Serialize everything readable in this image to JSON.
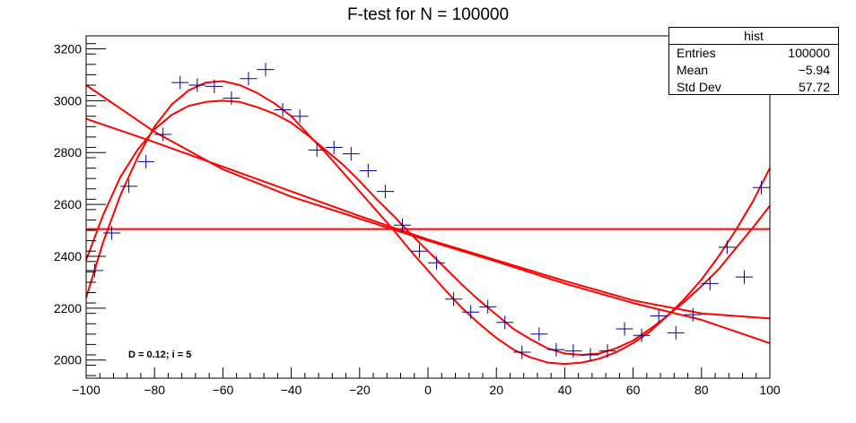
{
  "title": "F-test for N = 100000",
  "stats": {
    "title": "hist",
    "rows": [
      {
        "label": "Entries",
        "value": "100000"
      },
      {
        "label": "Mean",
        "value": "−5.94"
      },
      {
        "label": "Std Dev",
        "value": "57.72"
      }
    ]
  },
  "annotation": "D = 0.12; i = 5",
  "colors": {
    "data": "#000080",
    "fit": "#ff0000"
  },
  "chart_data": {
    "type": "scatter",
    "title": "F-test for N = 100000",
    "xlabel": "",
    "ylabel": "",
    "xlim": [
      -100,
      100
    ],
    "ylim": [
      1930,
      3250
    ],
    "x_ticks": [
      -100,
      -80,
      -60,
      -40,
      -20,
      0,
      20,
      40,
      60,
      80,
      100
    ],
    "x_tick_labels": [
      "−100",
      "−80",
      "−60",
      "−40",
      "−20",
      "0",
      "20",
      "40",
      "60",
      "80",
      "100"
    ],
    "y_ticks": [
      2000,
      2200,
      2400,
      2600,
      2800,
      3000,
      3200
    ],
    "y_tick_labels": [
      "2000",
      "2200",
      "2400",
      "2600",
      "2800",
      "3000",
      "3200"
    ],
    "grid": false,
    "bin_half_width": 2.5,
    "series": [
      {
        "kind": "data",
        "x": [
          -97.5,
          -92.5,
          -87.5,
          -82.5,
          -77.5,
          -72.5,
          -67.5,
          -62.5,
          -57.5,
          -52.5,
          -47.5,
          -42.5,
          -37.5,
          -32.5,
          -27.5,
          -22.5,
          -17.5,
          -12.5,
          -7.5,
          -2.5,
          2.5,
          7.5,
          12.5,
          17.5,
          22.5,
          27.5,
          32.5,
          37.5,
          42.5,
          47.5,
          52.5,
          57.5,
          62.5,
          67.5,
          72.5,
          77.5,
          82.5,
          87.5,
          92.5,
          97.5
        ],
        "y": [
          2345,
          2490,
          2670,
          2765,
          2870,
          3070,
          3060,
          3055,
          3010,
          3085,
          3120,
          2965,
          2940,
          2810,
          2820,
          2795,
          2730,
          2650,
          2520,
          2420,
          2375,
          2235,
          2185,
          2205,
          2145,
          2030,
          2100,
          2040,
          2035,
          2020,
          2035,
          2120,
          2095,
          2170,
          2105,
          2175,
          2295,
          2435,
          2320,
          2665
        ],
        "errors": [
          52,
          52,
          52,
          52,
          52,
          52,
          52,
          52,
          52,
          52,
          52,
          52,
          52,
          52,
          52,
          52,
          52,
          52,
          52,
          52,
          52,
          52,
          52,
          52,
          52,
          52,
          52,
          52,
          52,
          52,
          52,
          52,
          52,
          52,
          52,
          52,
          52,
          52,
          52,
          52
        ]
      },
      {
        "kind": "fit",
        "x": [
          -100,
          100
        ],
        "y": [
          2505,
          2505
        ]
      },
      {
        "kind": "fit",
        "x": [
          -100,
          -80,
          -60,
          -40,
          -20,
          0,
          20,
          40,
          60,
          80,
          100
        ],
        "y": [
          2930,
          2840,
          2745,
          2650,
          2555,
          2465,
          2385,
          2305,
          2230,
          2180,
          2160
        ]
      },
      {
        "kind": "fit",
        "x": [
          -100,
          -80,
          -60,
          -40,
          -20,
          0,
          20,
          40,
          60,
          80,
          100
        ],
        "y": [
          3060,
          2880,
          2735,
          2630,
          2545,
          2460,
          2380,
          2295,
          2220,
          2155,
          2065
        ]
      },
      {
        "kind": "fit",
        "x": [
          -100,
          -95,
          -90,
          -85,
          -80,
          -75,
          -70,
          -65,
          -60,
          -55,
          -50,
          -45,
          -40,
          -35,
          -30,
          -25,
          -20,
          -15,
          -10,
          -5,
          0,
          5,
          10,
          15,
          20,
          25,
          30,
          35,
          40,
          45,
          50,
          55,
          60,
          65,
          70,
          75,
          80,
          85,
          90,
          95,
          100
        ],
        "y": [
          2385,
          2560,
          2705,
          2810,
          2890,
          2945,
          2980,
          2995,
          3000,
          2995,
          2975,
          2950,
          2915,
          2865,
          2810,
          2755,
          2690,
          2620,
          2555,
          2485,
          2420,
          2355,
          2290,
          2230,
          2175,
          2120,
          2080,
          2045,
          2025,
          2020,
          2025,
          2045,
          2075,
          2120,
          2170,
          2225,
          2285,
          2350,
          2430,
          2510,
          2595
        ]
      },
      {
        "kind": "fit",
        "x": [
          -100,
          -95,
          -90,
          -85,
          -80,
          -75,
          -70,
          -65,
          -60,
          -55,
          -50,
          -45,
          -40,
          -35,
          -30,
          -25,
          -20,
          -15,
          -10,
          -5,
          0,
          5,
          10,
          15,
          20,
          25,
          30,
          35,
          40,
          45,
          50,
          55,
          60,
          65,
          70,
          75,
          80,
          85,
          90,
          95,
          100
        ],
        "y": [
          2240,
          2455,
          2635,
          2780,
          2900,
          2985,
          3040,
          3070,
          3075,
          3060,
          3030,
          2990,
          2940,
          2870,
          2800,
          2725,
          2650,
          2575,
          2500,
          2420,
          2345,
          2270,
          2200,
          2140,
          2085,
          2040,
          2010,
          1990,
          1985,
          1990,
          2005,
          2030,
          2065,
          2110,
          2170,
          2235,
          2310,
          2400,
          2500,
          2610,
          2740
        ]
      }
    ]
  }
}
